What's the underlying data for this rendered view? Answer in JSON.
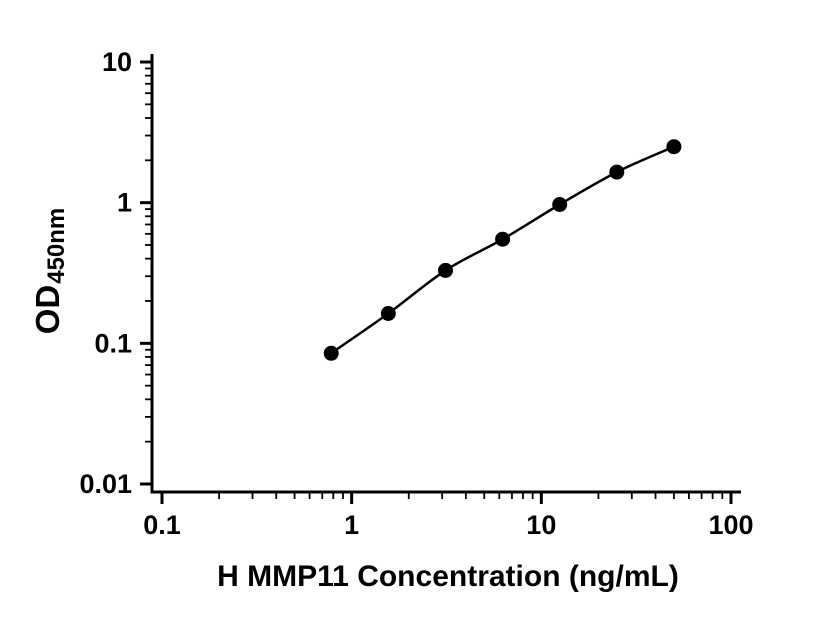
{
  "figure": {
    "background": "#ffffff",
    "description": "ELISA standard curve plot, log-log axes, single black series with filled circle markers"
  },
  "chart_data": {
    "type": "line",
    "title": "",
    "xlabel": "H MMP11 Concentration (ng/mL)",
    "ylabel": "OD",
    "ylabel_sub": "450nm",
    "xscale": "log",
    "yscale": "log",
    "xlim": [
      0.1,
      100
    ],
    "ylim": [
      0.01,
      10
    ],
    "x": [
      0.78,
      1.56,
      3.125,
      6.25,
      12.5,
      25,
      50
    ],
    "y": [
      0.085,
      0.163,
      0.33,
      0.55,
      0.97,
      1.65,
      2.5
    ],
    "x_ticks": [
      0.1,
      1,
      10,
      100
    ],
    "x_tick_labels": [
      "0.1",
      "1",
      "10",
      "100"
    ],
    "y_ticks": [
      0.01,
      0.1,
      1,
      10
    ],
    "y_tick_labels": [
      "0.01",
      "0.1",
      "1",
      "10"
    ],
    "grid": false,
    "legend": null,
    "series_color": "#000000",
    "marker": "filled-circle",
    "marker_size": 7.5,
    "line_width": 2.5
  }
}
